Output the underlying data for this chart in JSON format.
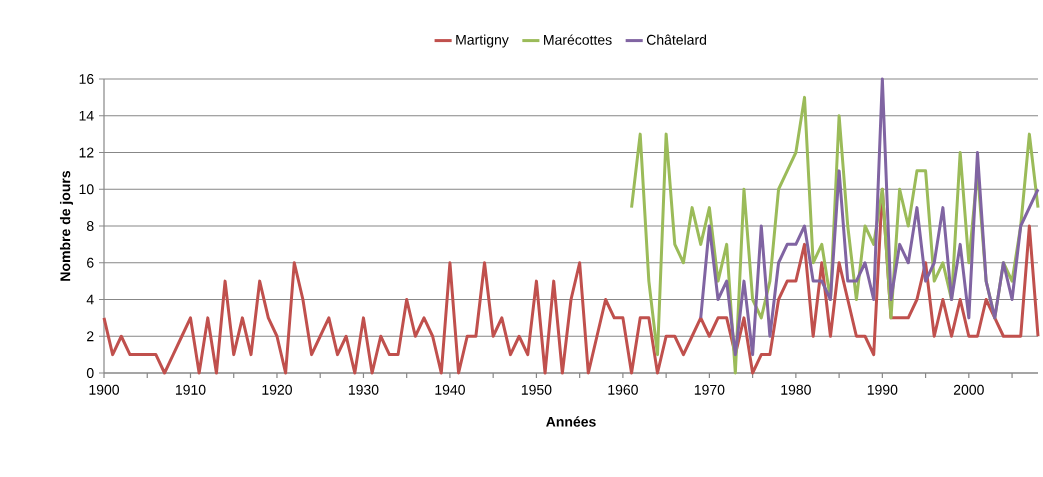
{
  "chart_data": {
    "type": "line",
    "xlabel": "Années",
    "ylabel": "Nombre de jours",
    "x": [
      1900,
      1901,
      1902,
      1903,
      1904,
      1905,
      1906,
      1907,
      1908,
      1909,
      1910,
      1911,
      1912,
      1913,
      1914,
      1915,
      1916,
      1917,
      1918,
      1919,
      1920,
      1921,
      1922,
      1923,
      1924,
      1925,
      1926,
      1927,
      1928,
      1929,
      1930,
      1931,
      1932,
      1933,
      1934,
      1935,
      1936,
      1937,
      1938,
      1939,
      1940,
      1941,
      1942,
      1943,
      1944,
      1945,
      1946,
      1947,
      1948,
      1949,
      1950,
      1951,
      1952,
      1953,
      1954,
      1955,
      1956,
      1957,
      1958,
      1959,
      1960,
      1961,
      1962,
      1963,
      1964,
      1965,
      1966,
      1967,
      1968,
      1969,
      1970,
      1971,
      1972,
      1973,
      1974,
      1975,
      1976,
      1977,
      1978,
      1979,
      1980,
      1981,
      1982,
      1983,
      1984,
      1985,
      1986,
      1987,
      1988,
      1989,
      1990,
      1991,
      1992,
      1993,
      1994,
      1995,
      1996,
      1997,
      1998,
      1999,
      2000,
      2001,
      2002,
      2003,
      2004,
      2005,
      2006,
      2007,
      2008
    ],
    "series": [
      {
        "name": "Martigny",
        "color": "#c0504d",
        "values": [
          3,
          1,
          2,
          1,
          1,
          1,
          1,
          0,
          1,
          2,
          3,
          0,
          3,
          0,
          5,
          1,
          3,
          1,
          5,
          3,
          2,
          0,
          6,
          4,
          1,
          2,
          3,
          1,
          2,
          0,
          3,
          0,
          2,
          1,
          1,
          4,
          2,
          3,
          2,
          0,
          6,
          0,
          2,
          2,
          6,
          2,
          3,
          1,
          2,
          1,
          5,
          0,
          5,
          0,
          4,
          6,
          0,
          2,
          4,
          3,
          3,
          0,
          3,
          3,
          0,
          2,
          2,
          1,
          2,
          3,
          2,
          3,
          3,
          1,
          3,
          0,
          1,
          1,
          4,
          5,
          5,
          7,
          2,
          6,
          2,
          6,
          4,
          2,
          2,
          1,
          10,
          3,
          3,
          3,
          4,
          6,
          2,
          4,
          2,
          4,
          2,
          2,
          4,
          3,
          2,
          2,
          2,
          8,
          2
        ]
      },
      {
        "name": "Marécottes",
        "color": "#9bbb59",
        "x": [
          1961,
          1962,
          1963,
          1964,
          1965,
          1966,
          1967,
          1968,
          1969,
          1970,
          1971,
          1972,
          1973,
          1974,
          1975,
          1976,
          1977,
          1978,
          1979,
          1980,
          1981,
          1982,
          1983,
          1984,
          1985,
          1986,
          1987,
          1988,
          1989,
          1990,
          1991,
          1992,
          1993,
          1994,
          1995,
          1996,
          1997,
          1998,
          1999,
          2000,
          2001,
          2002,
          2003,
          2004,
          2005,
          2006,
          2007,
          2008
        ],
        "values": [
          9,
          13,
          5,
          1,
          13,
          7,
          6,
          9,
          7,
          9,
          5,
          7,
          0,
          10,
          4,
          3,
          5,
          10,
          11,
          12,
          15,
          6,
          7,
          4,
          14,
          8,
          4,
          8,
          7,
          10,
          3,
          10,
          8,
          11,
          11,
          5,
          6,
          4,
          12,
          6,
          11,
          5,
          3,
          6,
          5,
          8,
          13,
          9
        ]
      },
      {
        "name": "Châtelard",
        "color": "#8064a2",
        "x": [
          1969,
          1970,
          1971,
          1972,
          1973,
          1974,
          1975,
          1976,
          1977,
          1978,
          1979,
          1980,
          1981,
          1982,
          1983,
          1984,
          1985,
          1986,
          1987,
          1988,
          1989,
          1990,
          1991,
          1992,
          1993,
          1994,
          1995,
          1996,
          1997,
          1998,
          1999,
          2000,
          2001,
          2002,
          2003,
          2004,
          2005,
          2006,
          2007,
          2008
        ],
        "values": [
          3,
          8,
          4,
          5,
          1,
          5,
          1,
          8,
          2,
          6,
          7,
          7,
          8,
          5,
          5,
          4,
          11,
          5,
          5,
          6,
          4,
          16,
          4,
          7,
          6,
          9,
          5,
          6,
          9,
          4,
          7,
          3,
          12,
          5,
          3,
          6,
          4,
          8,
          9,
          10
        ]
      }
    ],
    "xlim": [
      1900,
      2008
    ],
    "xticks": [
      1900,
      {
        "value": 1905,
        "label": null
      },
      1910,
      {
        "value": 1915,
        "label": null
      },
      1920,
      {
        "value": 1925,
        "label": null
      },
      1930,
      {
        "value": 1935,
        "label": null
      },
      1940,
      {
        "value": 1945,
        "label": null
      },
      1950,
      {
        "value": 1955,
        "label": null
      },
      1960,
      {
        "value": 1965,
        "label": null
      },
      1970,
      {
        "value": 1975,
        "label": null
      },
      1980,
      {
        "value": 1985,
        "label": null
      },
      1990,
      {
        "value": 1995,
        "label": null
      },
      2000,
      {
        "value": 2005,
        "label": null
      }
    ],
    "ylim": [
      0,
      16
    ],
    "yticks": [
      0,
      2,
      4,
      6,
      8,
      10,
      12,
      14,
      16
    ],
    "grid": "y",
    "legend": "top",
    "marker": "none",
    "line_style": "solid"
  }
}
